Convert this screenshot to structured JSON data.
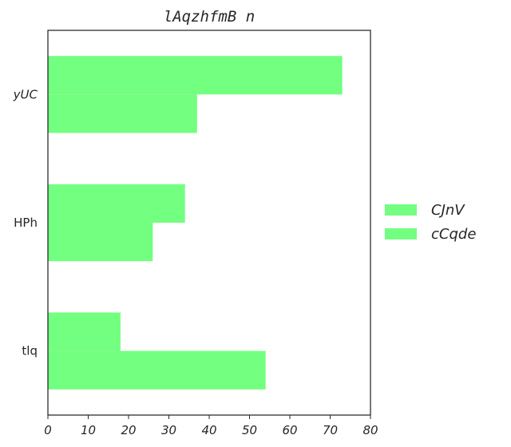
{
  "chart_data": {
    "type": "bar",
    "orientation": "horizontal",
    "title": "lAqzhfmB n",
    "xlabel": "",
    "ylabel": "",
    "categories": [
      "tlq",
      "HPh",
      "yUC"
    ],
    "series": [
      {
        "name": "CJnV",
        "values": [
          18,
          34,
          73
        ],
        "color": "#73ff80"
      },
      {
        "name": "cCqde",
        "values": [
          54,
          26,
          37
        ],
        "color": "#73ff80"
      }
    ],
    "xlim": [
      0,
      80
    ],
    "xticks": [
      "0",
      "10",
      "20",
      "30",
      "40",
      "50",
      "60",
      "70",
      "80"
    ],
    "grid": false,
    "legend_position": "right"
  }
}
